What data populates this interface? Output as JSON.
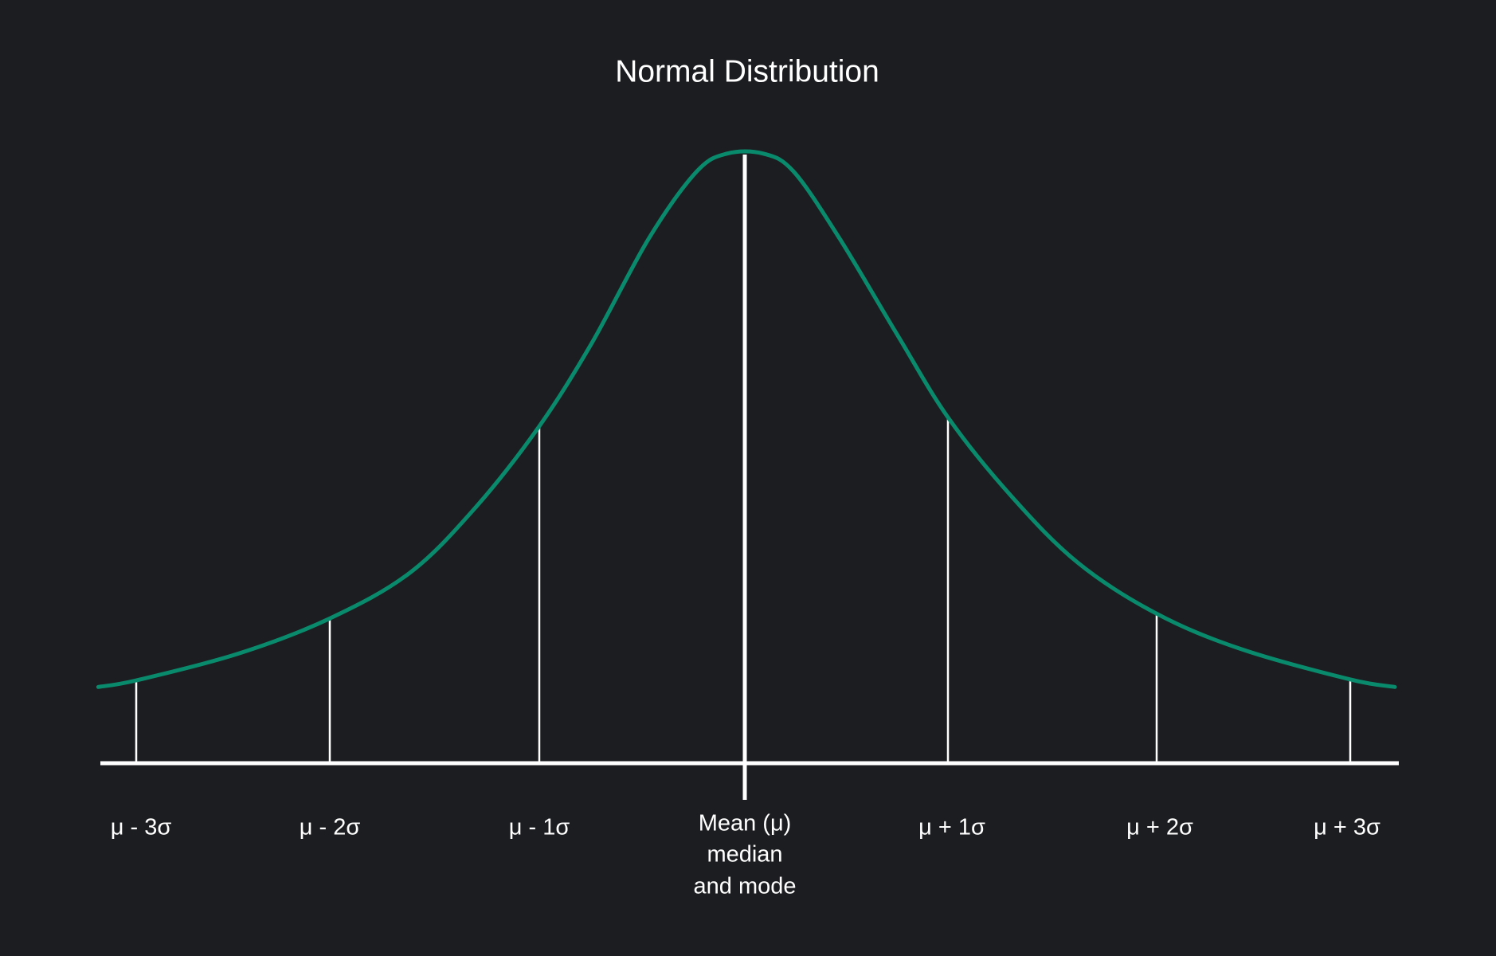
{
  "title": "Normal Distribution",
  "left_labels": [
    "μ - 3σ",
    "μ - 2σ",
    "μ - 1σ"
  ],
  "mean_label": [
    "Mean (μ)",
    "median",
    "and mode"
  ],
  "right_labels": [
    "μ + 1σ",
    "μ + 2σ",
    "μ + 3σ"
  ]
}
